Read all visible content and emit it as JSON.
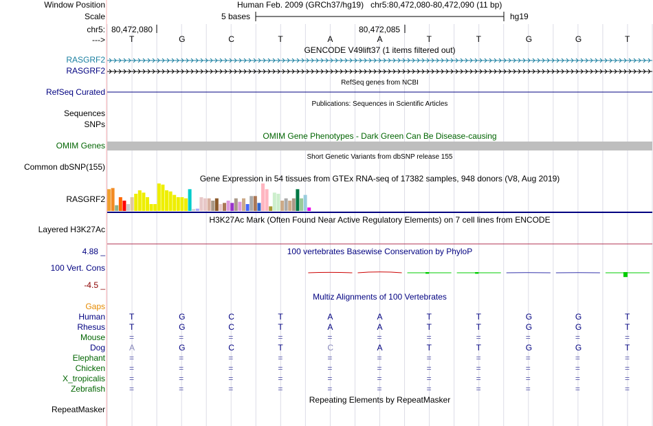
{
  "header": {
    "window_position_label": "Window Position",
    "window_position_value": "Human Feb. 2009 (GRCh37/hg19)   chr5:80,472,080-80,472,090 (11 bp)",
    "scale_label": "Scale",
    "scale_value": "5 bases",
    "assembly": "hg19",
    "chrom_label": "chr5:",
    "pos1": "80,472,080",
    "pos2": "80,472,085",
    "strand_arrow": "--->",
    "bases": [
      "T",
      "G",
      "C",
      "T",
      "A",
      "A",
      "T",
      "T",
      "G",
      "G",
      "T"
    ]
  },
  "tracks": {
    "gencode_title": "GENCODE V49lift37 (1 items filtered out)",
    "gencode_items": [
      "RASGRF2",
      "RASGRF2"
    ],
    "refseq_title": "RefSeq genes from NCBI",
    "refseq_label": "RefSeq Curated",
    "pubs_title": "Publications: Sequences in Scientific Articles",
    "sequences_label": "Sequences",
    "snps_label": "SNPs",
    "omim_title": "OMIM Gene Phenotypes - Dark Green Can Be Disease-causing",
    "omim_label": "OMIM Genes",
    "dbsnp_title": "Short Genetic Variants from dbSNP release 155",
    "dbsnp_label": "Common dbSNP(155)",
    "gtex_title": "Gene Expression in 54 tissues from GTEx RNA-seq of 17382 samples, 948 donors (V8, Aug 2019)",
    "gtex_label": "RASGRF2",
    "h3k27ac_title": "H3K27Ac Mark (Often Found Near Active Regulatory Elements) on 7 cell lines from ENCODE",
    "h3k27ac_label": "Layered H3K27Ac",
    "phylop_title": "100 vertebrates Basewise Conservation by PhyloP",
    "phylop_label": "100 Vert. Cons",
    "phylop_max": "4.88 _",
    "phylop_min": "-4.5 _",
    "multiz_title": "Multiz Alignments of 100 Vertebrates",
    "gaps_label": "Gaps",
    "repeat_title": "Repeating Elements by RepeatMasker",
    "repeat_label": "RepeatMasker"
  },
  "gtex_values": [
    {
      "c": "#f0a030",
      "v": 0.95
    },
    {
      "c": "#f28b24",
      "v": 1.0
    },
    {
      "c": "#8cb28c",
      "v": 0.25
    },
    {
      "c": "#ff6600",
      "v": 0.6
    },
    {
      "c": "#ff0000",
      "v": 0.45
    },
    {
      "c": "#cccccc",
      "v": 0.3
    },
    {
      "c": "#e0c8a0",
      "v": 0.6
    },
    {
      "c": "#eeee00",
      "v": 0.75
    },
    {
      "c": "#eeee00",
      "v": 0.9
    },
    {
      "c": "#eeee00",
      "v": 0.8
    },
    {
      "c": "#eeee00",
      "v": 0.6
    },
    {
      "c": "#eeee00",
      "v": 0.3
    },
    {
      "c": "#eeee00",
      "v": 0.3
    },
    {
      "c": "#eeee00",
      "v": 1.2
    },
    {
      "c": "#eeee00",
      "v": 1.15
    },
    {
      "c": "#eeee00",
      "v": 0.9
    },
    {
      "c": "#eeee00",
      "v": 0.85
    },
    {
      "c": "#eeee00",
      "v": 0.7
    },
    {
      "c": "#eeee00",
      "v": 0.6
    },
    {
      "c": "#eeee00",
      "v": 0.6
    },
    {
      "c": "#eeee00",
      "v": 0.55
    },
    {
      "c": "#00cccc",
      "v": 0.95
    },
    {
      "c": "#cccccc",
      "v": 0.08
    },
    {
      "c": "#aaaaff",
      "v": 0.1
    },
    {
      "c": "#e8c8c8",
      "v": 0.6
    },
    {
      "c": "#e8c8c8",
      "v": 0.55
    },
    {
      "c": "#d8b0a0",
      "v": 0.55
    },
    {
      "c": "#aa9988",
      "v": 0.45
    },
    {
      "c": "#8b5a2b",
      "v": 0.55
    },
    {
      "c": "#e8c8c8",
      "v": 0.3
    },
    {
      "c": "#aa7755",
      "v": 0.35
    },
    {
      "c": "#dd99dd",
      "v": 0.45
    },
    {
      "c": "#9933cc",
      "v": 0.35
    },
    {
      "c": "#aa9988",
      "v": 0.55
    },
    {
      "c": "#dd99dd",
      "v": 0.4
    },
    {
      "c": "#ccaa88",
      "v": 0.55
    },
    {
      "c": "#4466ff",
      "v": 0.3
    },
    {
      "c": "#aaaaaa",
      "v": 0.65
    },
    {
      "c": "#aa7755",
      "v": 0.65
    },
    {
      "c": "#3366cc",
      "v": 0.35
    },
    {
      "c": "#ffb6c1",
      "v": 1.2
    },
    {
      "c": "#ffb6c1",
      "v": 0.95
    },
    {
      "c": "#aa9933",
      "v": 0.2
    },
    {
      "c": "#cceecc",
      "v": 0.8
    },
    {
      "c": "#cceecc",
      "v": 0.75
    },
    {
      "c": "#ccaa88",
      "v": 0.45
    },
    {
      "c": "#aaaaaa",
      "v": 0.55
    },
    {
      "c": "#ccaa88",
      "v": 0.45
    },
    {
      "c": "#aa9988",
      "v": 0.55
    },
    {
      "c": "#007744",
      "v": 0.95
    },
    {
      "c": "#99cc99",
      "v": 0.55
    },
    {
      "c": "#99ccdd",
      "v": 0.7
    },
    {
      "c": "#ee00ee",
      "v": 0.15
    }
  ],
  "phylop_scores": [
    0,
    0,
    0,
    0,
    -0.3,
    -0.6,
    0.3,
    0.3,
    -0.1,
    -0.1,
    0.9
  ],
  "multiz": [
    {
      "species": "Human",
      "color": "#000080",
      "bases": [
        "T",
        "G",
        "C",
        "T",
        "A",
        "A",
        "T",
        "T",
        "G",
        "G",
        "T"
      ]
    },
    {
      "species": "Rhesus",
      "color": "#000080",
      "bases": [
        "T",
        "G",
        "C",
        "T",
        "A",
        "A",
        "T",
        "T",
        "G",
        "G",
        "T"
      ]
    },
    {
      "species": "Mouse",
      "color": "#006400",
      "bases": [
        "=",
        "=",
        "=",
        "=",
        "=",
        "=",
        "=",
        "=",
        "=",
        "=",
        "="
      ]
    },
    {
      "species": "Dog",
      "color": "#000080",
      "bases": [
        "A",
        "G",
        "C",
        "T",
        "C",
        "A",
        "T",
        "T",
        "G",
        "G",
        "T"
      ]
    },
    {
      "species": "Elephant",
      "color": "#006400",
      "bases": [
        "=",
        "=",
        "=",
        "=",
        "=",
        "=",
        "=",
        "=",
        "=",
        "=",
        "="
      ]
    },
    {
      "species": "Chicken",
      "color": "#006400",
      "bases": [
        "=",
        "=",
        "=",
        "=",
        "=",
        "=",
        "=",
        "=",
        "=",
        "=",
        "="
      ]
    },
    {
      "species": "X_tropicalis",
      "color": "#006400",
      "bases": [
        "=",
        "=",
        "=",
        "=",
        "=",
        "=",
        "=",
        "=",
        "=",
        "=",
        "="
      ]
    },
    {
      "species": "Zebrafish",
      "color": "#006400",
      "bases": [
        "=",
        "=",
        "=",
        "=",
        "=",
        "=",
        "=",
        "=",
        "=",
        "=",
        "="
      ]
    }
  ],
  "dog_mismatch_positions": [
    0,
    4
  ],
  "colors": {
    "gencode": "#1a7fa0",
    "navy": "#000080",
    "omim_label": "#006400",
    "omim_bar": "#bebebe",
    "phylop_max": "#000080",
    "phylop_min": "#8b0000",
    "gaps": "#e68a00",
    "grid": "#dcdce6",
    "divider": "#ffb4b4"
  }
}
